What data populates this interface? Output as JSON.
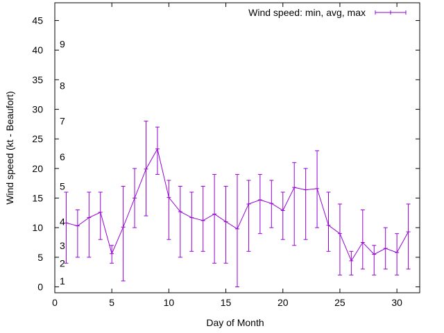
{
  "chart_data": {
    "type": "line",
    "title": "",
    "xlabel": "Day of Month",
    "ylabel": "Wind speed (kt - Beaufort)",
    "xlim": [
      0,
      32
    ],
    "ylim": [
      -1,
      48
    ],
    "x_ticks": [
      0,
      5,
      10,
      15,
      20,
      25,
      30
    ],
    "y_ticks": [
      0,
      5,
      10,
      15,
      20,
      25,
      30,
      35,
      40,
      45
    ],
    "grid": false,
    "legend": {
      "position": "top-right",
      "label": "Wind speed: min, avg, max"
    },
    "beaufort_labels": [
      {
        "label": "1",
        "value": 1
      },
      {
        "label": "2",
        "value": 4
      },
      {
        "label": "3",
        "value": 7
      },
      {
        "label": "4",
        "value": 11
      },
      {
        "label": "5",
        "value": 17
      },
      {
        "label": "6",
        "value": 22
      },
      {
        "label": "7",
        "value": 28
      },
      {
        "label": "8",
        "value": 34
      },
      {
        "label": "9",
        "value": 41
      }
    ],
    "series": [
      {
        "name": "Wind speed: min, avg, max",
        "color": "#9400d3",
        "x": [
          1,
          2,
          3,
          4,
          5,
          6,
          7,
          8,
          9,
          10,
          11,
          12,
          13,
          14,
          15,
          16,
          17,
          18,
          19,
          20,
          21,
          22,
          23,
          24,
          25,
          26,
          27,
          28,
          29,
          30,
          31
        ],
        "avg": [
          10.8,
          10.3,
          11.7,
          12.6,
          5.6,
          10.1,
          15,
          19.9,
          23.3,
          15.1,
          12.7,
          11.7,
          11.2,
          12.3,
          11,
          9.8,
          14,
          14.7,
          14.1,
          12.9,
          16.8,
          16.4,
          16.6,
          10.4,
          9,
          4.4,
          7.5,
          5.5,
          6.5,
          5.8,
          9.3
        ],
        "min": [
          4,
          5,
          5,
          8,
          4,
          1,
          10,
          12,
          19,
          8,
          5,
          6,
          6,
          4,
          4,
          0,
          6,
          9,
          10,
          8,
          7,
          8,
          10,
          6,
          2,
          2,
          3,
          2,
          3,
          2,
          3
        ],
        "max": [
          16,
          13,
          16,
          16,
          7,
          17,
          20,
          28,
          27,
          18,
          17,
          16,
          17,
          19,
          17,
          19,
          18,
          19,
          18,
          16,
          21,
          20,
          23,
          16,
          14,
          6,
          13,
          7,
          10,
          9,
          14
        ]
      }
    ]
  }
}
